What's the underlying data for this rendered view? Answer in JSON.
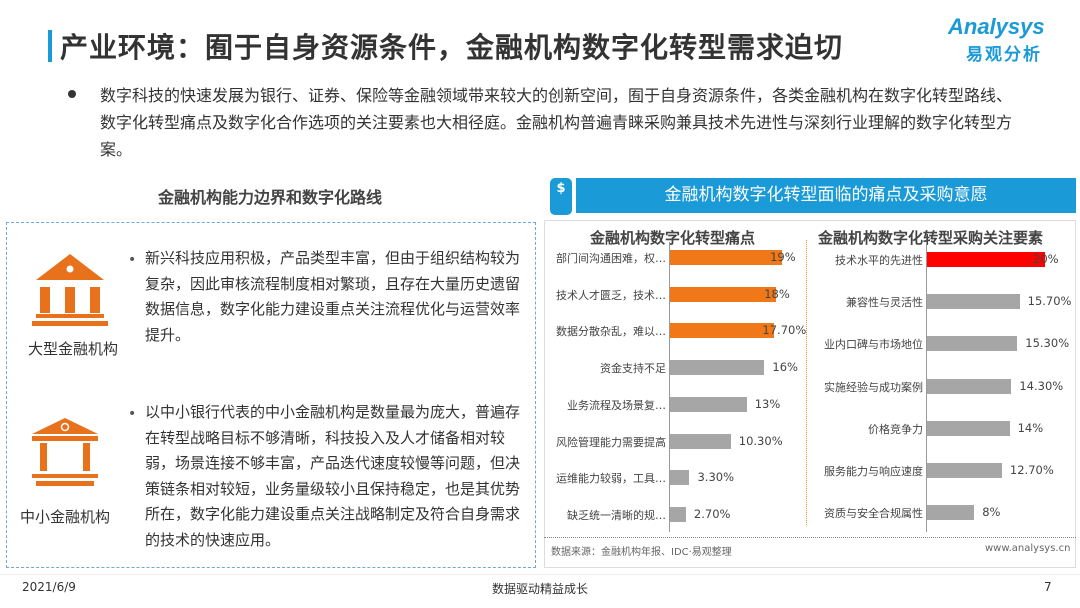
{
  "header": {
    "title": "产业环境：囿于自身资源条件，金融机构数字化转型需求迫切",
    "logo_en": "Analysys",
    "logo_cn": "易观分析"
  },
  "intro": "数字科技的快速发展为银行、证券、保险等金融领域带来较大的创新空间，囿于自身资源条件，各类金融机构在数字化转型路线、数字化转型痛点及数字化合作选项的关注要素也大相径庭。金融机构普遍青睐采购兼具技术先进性与深刻行业理解的数字化转型方案。",
  "left": {
    "heading": "金融机构能力边界和数字化路线",
    "items": [
      {
        "label": "大型金融机构",
        "icon": "bank-icon",
        "text": "新兴科技应用积极，产品类型丰富，但由于组织结构较为复杂，因此审核流程制度相对繁琐，且存在大量历史遗留数据信息，数字化能力建设重点关注流程优化与运营效率提升。"
      },
      {
        "label": "中小金融机构",
        "icon": "bank-small-icon",
        "text": "以中小银行代表的中小金融机构是数量最为庞大，普遍存在转型战略目标不够清晰，科技投入及人才储备相对较弱，场景连接不够丰富，产品迭代速度较慢等问题，但决策链条相对较短，业务量级较小且保持稳定，也是其优势所在，数字化能力建设重点关注战略制定及符合自身需求的技术的快速应用。"
      }
    ]
  },
  "right": {
    "heading": "金融机构数字化转型面临的痛点及采购意愿",
    "icon": "dollar-phone-icon",
    "source": "数据来源：金融机构年报、IDC·易观整理",
    "site": "www.analysys.cn"
  },
  "chart_data": [
    {
      "type": "bar",
      "orientation": "horizontal",
      "title": "金融机构数字化转型痛点",
      "categories": [
        "部门间沟通困难，权…",
        "技术人才匮乏，技术…",
        "数据分散杂乱，难以…",
        "资金支持不足",
        "业务流程及场景复…",
        "风险管理能力需要提高",
        "运维能力较弱，工具…",
        "缺乏统一清晰的规…"
      ],
      "values": [
        19,
        18,
        17.7,
        16,
        13,
        10.3,
        3.3,
        2.7
      ],
      "labels": [
        "19%",
        "18%",
        "17.70%",
        "16%",
        "13%",
        "10.30%",
        "3.30%",
        "2.70%"
      ],
      "colors": [
        "#f07818",
        "#f07818",
        "#f07818",
        "#a6a6a6",
        "#a6a6a6",
        "#a6a6a6",
        "#a6a6a6",
        "#a6a6a6"
      ],
      "unit": "%",
      "xlim": [
        0,
        20
      ]
    },
    {
      "type": "bar",
      "orientation": "horizontal",
      "title": "金融机构数字化转型采购关注要素",
      "categories": [
        "技术水平的先进性",
        "兼容性与灵活性",
        "业内口碑与市场地位",
        "实施经验与成功案例",
        "价格竞争力",
        "服务能力与响应速度",
        "资质与安全合规属性"
      ],
      "values": [
        20,
        15.7,
        15.3,
        14.3,
        14,
        12.7,
        8
      ],
      "labels": [
        "20%",
        "15.70%",
        "15.30%",
        "14.30%",
        "14%",
        "12.70%",
        "8%"
      ],
      "colors": [
        "#ff0000",
        "#a6a6a6",
        "#a6a6a6",
        "#a6a6a6",
        "#a6a6a6",
        "#a6a6a6",
        "#a6a6a6"
      ],
      "unit": "%",
      "xlim": [
        0,
        20
      ]
    }
  ],
  "footer": {
    "date": "2021/6/9",
    "slogan": "数据驱动精益成长",
    "page": "7"
  },
  "colors": {
    "accent": "#1a9ad6",
    "orange": "#f07818",
    "red": "#ff0000",
    "gray": "#a6a6a6"
  }
}
